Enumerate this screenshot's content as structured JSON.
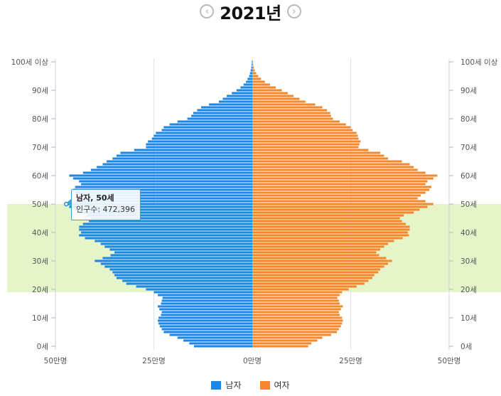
{
  "header": {
    "year": "2021년",
    "prev": "‹",
    "next": "›"
  },
  "legend": {
    "male": "남자",
    "female": "여자",
    "male_color": "#1b87e6",
    "female_color": "#f5882a"
  },
  "tooltip": {
    "title": "남자, 50세",
    "line": "인구수: 472,396"
  },
  "highlight": {
    "from_age": 20,
    "to_age": 50,
    "color": "#e6f5c9"
  },
  "chart_data": {
    "type": "bar",
    "orientation": "horizontal-pyramid",
    "x_ticks": [
      "50만명",
      "25만명",
      "0만명",
      "25만명",
      "50만명"
    ],
    "xlim": [
      -500000,
      500000
    ],
    "y_ticks_left": [
      "0세",
      "10세",
      "20세",
      "30세",
      "40세",
      "50세",
      "60세",
      "70세",
      "80세",
      "90세",
      "100세 이상"
    ],
    "y_ticks_right": [
      "0세",
      "10세",
      "20세",
      "30세",
      "40세",
      "50세",
      "60세",
      "70세",
      "80세",
      "90세",
      "100세 이상"
    ],
    "ages": [
      0,
      1,
      2,
      3,
      4,
      5,
      6,
      7,
      8,
      9,
      10,
      11,
      12,
      13,
      14,
      15,
      16,
      17,
      18,
      19,
      20,
      21,
      22,
      23,
      24,
      25,
      26,
      27,
      28,
      29,
      30,
      31,
      32,
      33,
      34,
      35,
      36,
      37,
      38,
      39,
      40,
      41,
      42,
      43,
      44,
      45,
      46,
      47,
      48,
      49,
      50,
      51,
      52,
      53,
      54,
      55,
      56,
      57,
      58,
      59,
      60,
      61,
      62,
      63,
      64,
      65,
      66,
      67,
      68,
      69,
      70,
      71,
      72,
      73,
      74,
      75,
      76,
      77,
      78,
      79,
      80,
      81,
      82,
      83,
      84,
      85,
      86,
      87,
      88,
      89,
      90,
      91,
      92,
      93,
      94,
      95,
      96,
      97,
      98,
      99,
      100
    ],
    "series": [
      {
        "name": "남자",
        "values": [
          148000,
          160000,
          175000,
          190000,
          210000,
          225000,
          230000,
          235000,
          238000,
          240000,
          238000,
          232000,
          230000,
          236000,
          240000,
          232000,
          230000,
          228000,
          240000,
          250000,
          270000,
          295000,
          320000,
          330000,
          345000,
          350000,
          355000,
          362000,
          375000,
          385000,
          400000,
          380000,
          360000,
          350000,
          362000,
          375000,
          385000,
          400000,
          425000,
          440000,
          435000,
          440000,
          440000,
          430000,
          415000,
          410000,
          420000,
          440000,
          450000,
          465000,
          472396,
          450000,
          430000,
          440000,
          450000,
          455000,
          450000,
          435000,
          440000,
          455000,
          465000,
          430000,
          410000,
          395000,
          380000,
          370000,
          355000,
          345000,
          335000,
          300000,
          270000,
          270000,
          265000,
          255000,
          250000,
          245000,
          230000,
          225000,
          210000,
          190000,
          165000,
          155000,
          150000,
          140000,
          130000,
          110000,
          85000,
          75000,
          65000,
          52000,
          40000,
          30000,
          22000,
          16000,
          12000,
          8000,
          6000,
          4000,
          2500,
          1500,
          1000
        ]
      },
      {
        "name": "여자",
        "values": [
          142000,
          150000,
          165000,
          178000,
          200000,
          215000,
          220000,
          225000,
          228000,
          230000,
          228000,
          222000,
          220000,
          225000,
          230000,
          222000,
          220000,
          216000,
          222000,
          228000,
          245000,
          265000,
          285000,
          295000,
          305000,
          310000,
          320000,
          325000,
          335000,
          345000,
          355000,
          340000,
          322000,
          315000,
          325000,
          335000,
          345000,
          360000,
          382000,
          398000,
          395000,
          400000,
          400000,
          390000,
          380000,
          375000,
          385000,
          410000,
          425000,
          445000,
          460000,
          440000,
          420000,
          428000,
          440000,
          450000,
          455000,
          440000,
          445000,
          460000,
          470000,
          440000,
          420000,
          410000,
          400000,
          380000,
          345000,
          335000,
          325000,
          295000,
          270000,
          272000,
          275000,
          270000,
          268000,
          265000,
          255000,
          250000,
          238000,
          222000,
          205000,
          200000,
          198000,
          190000,
          178000,
          160000,
          135000,
          120000,
          105000,
          90000,
          75000,
          60000,
          45000,
          32000,
          22000,
          15000,
          10000,
          6500,
          4000,
          2500,
          1800
        ]
      }
    ],
    "legend_position": "bottom-center",
    "grid": true
  }
}
